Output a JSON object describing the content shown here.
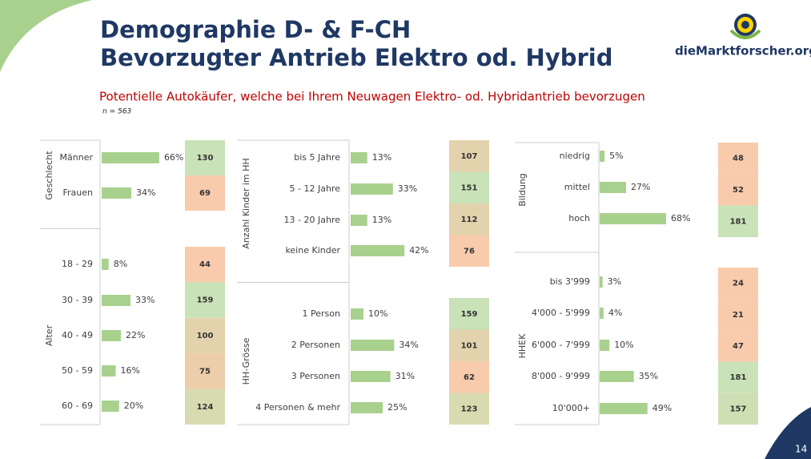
{
  "header": {
    "title_lines": [
      "Demographie D- & F-CH",
      "Bevorzugter Antrieb Elektro od. Hybrid"
    ],
    "logo": "dieMarktforscher.org",
    "subtitle": "Potentielle Autokäufer, welche bei Ihrem Neuwagen Elektro- od. Hybridantrieb bevorzugen",
    "n": "n = 563",
    "page": "14"
  },
  "panels": [
    {
      "groups": [
        {
          "label": "Geschlecht",
          "rows": [
            {
              "label": "Männer",
              "value": 66,
              "value_label": "66%",
              "count": 130,
              "count_color": "#c9e2b8"
            },
            {
              "label": "Frauen",
              "value": 34,
              "value_label": "34%",
              "count": 69,
              "count_color": "#f8cbad"
            }
          ]
        },
        {
          "label": "Alter",
          "rows": [
            {
              "label": "18 - 29",
              "value": 8,
              "value_label": "8%",
              "count": 44,
              "count_color": "#f8cbad"
            },
            {
              "label": "30 - 39",
              "value": 33,
              "value_label": "33%",
              "count": 159,
              "count_color": "#c9e2b8"
            },
            {
              "label": "40 - 49",
              "value": 22,
              "value_label": "22%",
              "count": 100,
              "count_color": "#e3d3ad"
            },
            {
              "label": "50 - 59",
              "value": 16,
              "value_label": "16%",
              "count": 75,
              "count_color": "#ecceaa"
            },
            {
              "label": "60 - 69",
              "value": 20,
              "value_label": "20%",
              "count": 124,
              "count_color": "#d8dab0"
            }
          ]
        }
      ]
    },
    {
      "groups": [
        {
          "label": "Anzahl Kinder im HH",
          "rows": [
            {
              "label": "bis 5 Jahre",
              "value": 13,
              "value_label": "13%",
              "count": 107,
              "count_color": "#e3d3ad"
            },
            {
              "label": "5 - 12 Jahre",
              "value": 33,
              "value_label": "33%",
              "count": 151,
              "count_color": "#c9e2b8"
            },
            {
              "label": "13 - 20 Jahre",
              "value": 13,
              "value_label": "13%",
              "count": 112,
              "count_color": "#e3d3ad"
            },
            {
              "label": "keine Kinder",
              "value": 42,
              "value_label": "42%",
              "count": 76,
              "count_color": "#f8cbad"
            }
          ]
        },
        {
          "label": "HH-Grösse",
          "rows": [
            {
              "label": "1 Person",
              "value": 10,
              "value_label": "10%",
              "count": 159,
              "count_color": "#c9e2b8"
            },
            {
              "label": "2 Personen",
              "value": 34,
              "value_label": "34%",
              "count": 101,
              "count_color": "#e3d3ad"
            },
            {
              "label": "3 Personen",
              "value": 31,
              "value_label": "31%",
              "count": 62,
              "count_color": "#f8cbad"
            },
            {
              "label": "4 Personen & mehr",
              "value": 25,
              "value_label": "25%",
              "count": 123,
              "count_color": "#d8dab0"
            }
          ]
        }
      ]
    },
    {
      "groups": [
        {
          "label": "Bildung",
          "rows": [
            {
              "label": "niedrig",
              "value": 5,
              "value_label": "5%",
              "count": 48,
              "count_color": "#f8cbad"
            },
            {
              "label": "mittel",
              "value": 27,
              "value_label": "27%",
              "count": 52,
              "count_color": "#f8cbad"
            },
            {
              "label": "hoch",
              "value": 68,
              "value_label": "68%",
              "count": 181,
              "count_color": "#c9e2b8"
            }
          ]
        },
        {
          "label": "HHEK",
          "rows": [
            {
              "label": "bis 3'999",
              "value": 3,
              "value_label": "3%",
              "count": 24,
              "count_color": "#f8cbad"
            },
            {
              "label": "4'000 - 5'999",
              "value": 4,
              "value_label": "4%",
              "count": 21,
              "count_color": "#f8cbad"
            },
            {
              "label": "6'000 - 7'999",
              "value": 10,
              "value_label": "10%",
              "count": 47,
              "count_color": "#f8cbad"
            },
            {
              "label": "8'000 - 9'999",
              "value": 35,
              "value_label": "35%",
              "count": 181,
              "count_color": "#c9e2b8"
            },
            {
              "label": "10'000+",
              "value": 49,
              "value_label": "49%",
              "count": 157,
              "count_color": "#cfdfb4"
            }
          ]
        }
      ]
    }
  ]
}
